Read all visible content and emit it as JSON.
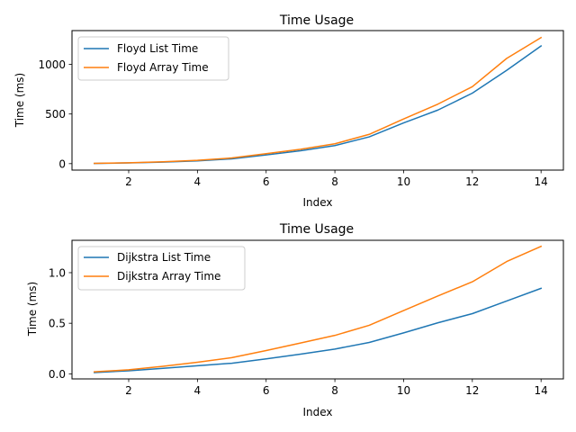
{
  "chart_data": [
    {
      "type": "line",
      "title": "Time Usage",
      "xlabel": "Index",
      "ylabel": "Time (ms)",
      "xlim": [
        0.35,
        14.65
      ],
      "ylim": [
        -65,
        1340
      ],
      "xticks": [
        2,
        4,
        6,
        8,
        10,
        12,
        14
      ],
      "yticks": [
        0,
        500,
        1000
      ],
      "ytick_labels": [
        "0",
        "500",
        "1000"
      ],
      "legend_position": "upper-left",
      "grid": false,
      "x": [
        1,
        2,
        3,
        4,
        5,
        6,
        7,
        8,
        9,
        10,
        11,
        12,
        13,
        14
      ],
      "series": [
        {
          "name": "Floyd List Time",
          "color": "#1f77b4",
          "values": [
            2,
            7,
            15,
            28,
            48,
            88,
            130,
            182,
            270,
            410,
            540,
            710,
            940,
            1185
          ]
        },
        {
          "name": "Floyd Array Time",
          "color": "#ff7f0e",
          "values": [
            3,
            9,
            19,
            34,
            57,
            100,
            145,
            200,
            295,
            450,
            600,
            775,
            1060,
            1270
          ]
        }
      ]
    },
    {
      "type": "line",
      "title": "Time Usage",
      "xlabel": "Index",
      "ylabel": "Time (ms)",
      "xlim": [
        0.35,
        14.65
      ],
      "ylim": [
        -0.05,
        1.32
      ],
      "xticks": [
        2,
        4,
        6,
        8,
        10,
        12,
        14
      ],
      "yticks": [
        0.0,
        0.5,
        1.0
      ],
      "ytick_labels": [
        "0.0",
        "0.5",
        "1.0"
      ],
      "legend_position": "upper-left",
      "grid": false,
      "x": [
        1,
        2,
        3,
        4,
        5,
        6,
        7,
        8,
        9,
        10,
        11,
        12,
        13,
        14
      ],
      "series": [
        {
          "name": "Dijkstra List Time",
          "color": "#1f77b4",
          "values": [
            0.013,
            0.03,
            0.055,
            0.08,
            0.105,
            0.148,
            0.195,
            0.245,
            0.31,
            0.405,
            0.505,
            0.595,
            0.72,
            0.845
          ]
        },
        {
          "name": "Dijkstra Array Time",
          "color": "#ff7f0e",
          "values": [
            0.02,
            0.04,
            0.075,
            0.115,
            0.16,
            0.23,
            0.305,
            0.38,
            0.48,
            0.625,
            0.77,
            0.91,
            1.11,
            1.26
          ]
        }
      ]
    }
  ]
}
